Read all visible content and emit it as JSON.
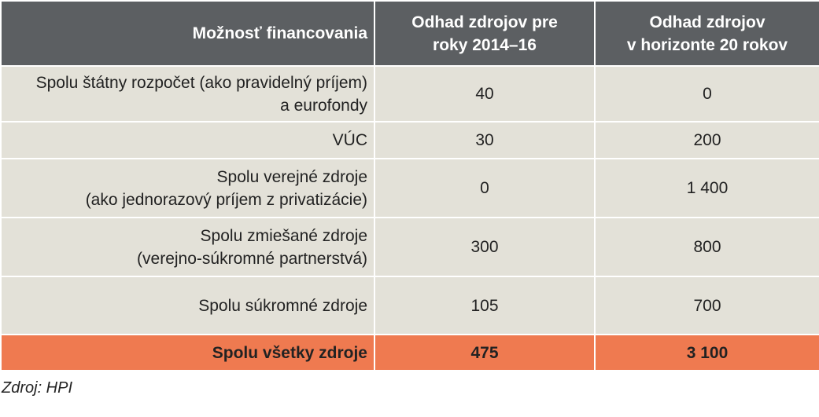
{
  "table": {
    "header": [
      [
        "Možnosť financovania"
      ],
      [
        "Odhad zdrojov pre",
        "roky 2014–16"
      ],
      [
        "Odhad zdrojov",
        "v horizonte 20 rokov"
      ]
    ],
    "rows": [
      [
        [
          "Spolu štátny rozpočet (ako pravidelný príjem)",
          "a eurofondy"
        ],
        [
          "40"
        ],
        [
          "0"
        ]
      ],
      [
        [
          "VÚC"
        ],
        [
          "30"
        ],
        [
          "200"
        ]
      ],
      [
        [
          "Spolu verejné zdroje",
          "(ako jednorazový príjem z privatizácie)"
        ],
        [
          "0"
        ],
        [
          "1 400"
        ]
      ],
      [
        [
          "Spolu zmiešané zdroje",
          "(verejno-súkromné partnerstvá)"
        ],
        [
          "300"
        ],
        [
          "800"
        ]
      ],
      [
        [
          "Spolu súkromné zdroje"
        ],
        [
          "105"
        ],
        [
          "700"
        ]
      ]
    ],
    "total": [
      [
        "Spolu všetky zdroje"
      ],
      [
        "475"
      ],
      [
        "3 100"
      ]
    ]
  },
  "source": "Zdroj: HPI"
}
